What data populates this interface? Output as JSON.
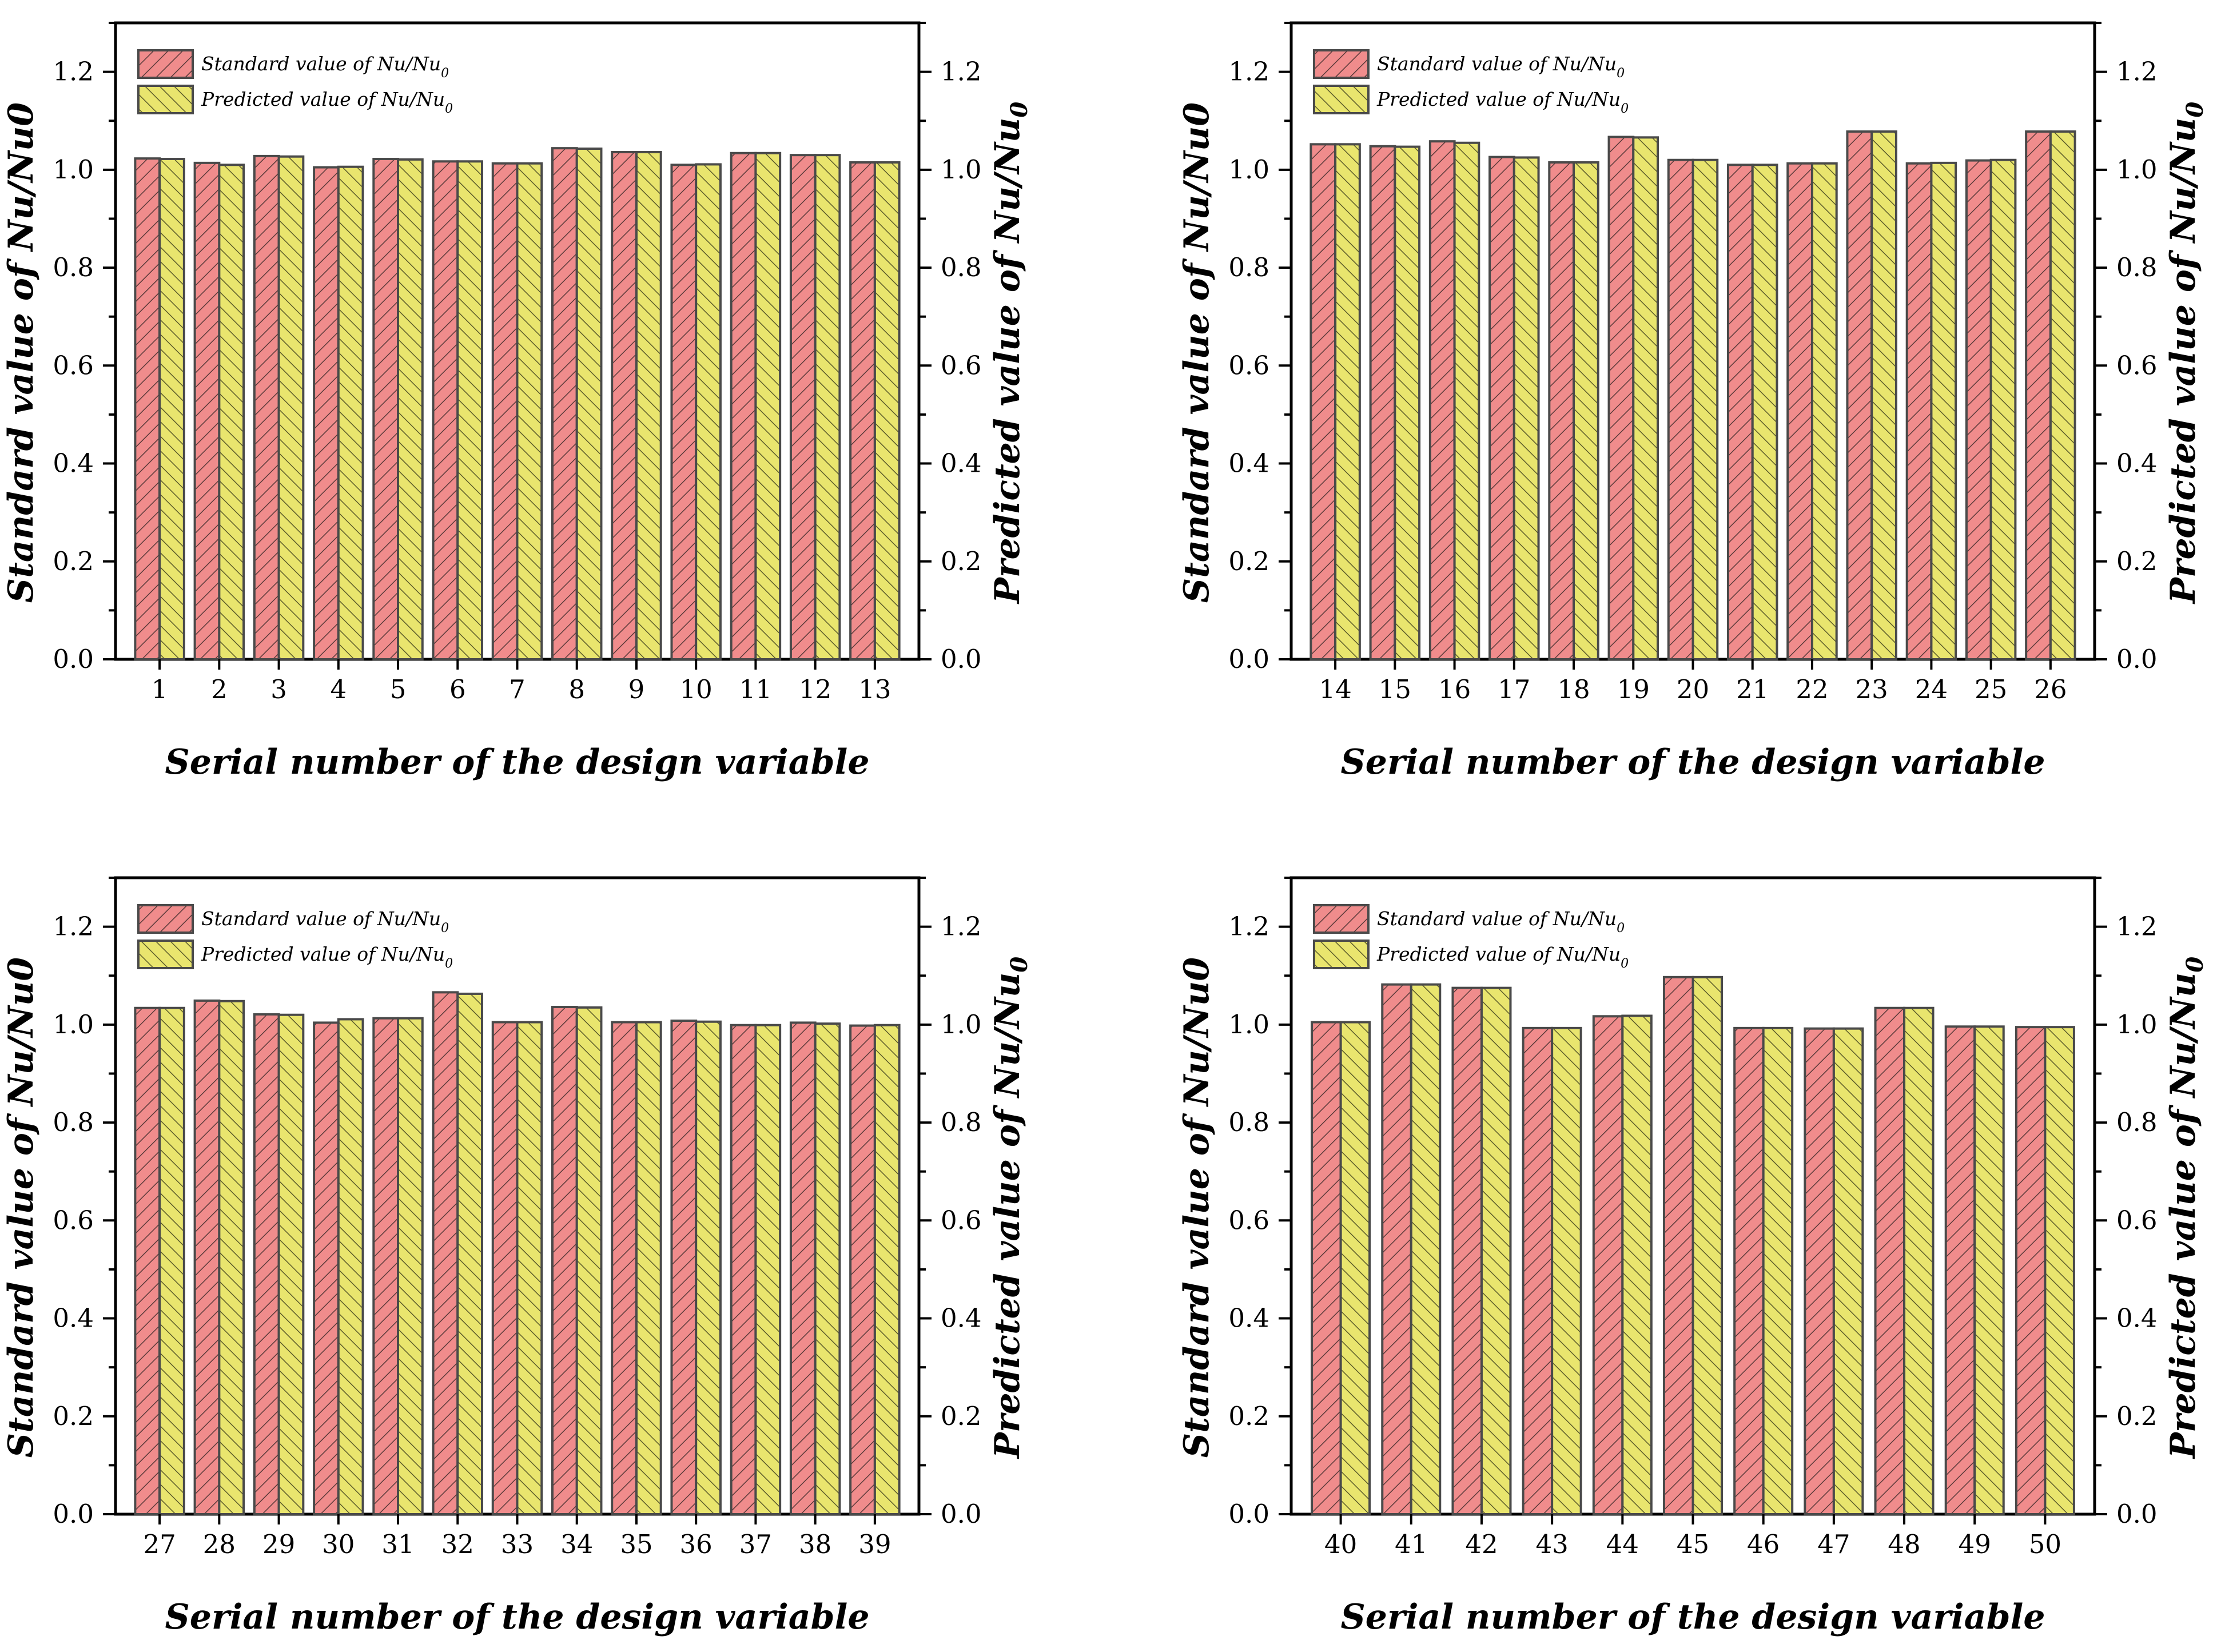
{
  "figure": {
    "x_axis_title": "Serial number of the design variable",
    "left_axis_title": "Standard value of Nu/Nu0",
    "right_axis_title_main": "Predicted value of Nu/Nu",
    "right_axis_title_sub": "0",
    "legend": {
      "standard_main": "Standard value of Nu/Nu",
      "standard_sub": "0",
      "predicted_main": "Predicted value of Nu/Nu",
      "predicted_sub": "0"
    }
  },
  "colors": {
    "standard_fill": "#f08c8c",
    "predicted_fill": "#e9e56e",
    "bar_stroke": "#4a4a4a",
    "axis": "#000000"
  },
  "chart_data": [
    {
      "type": "bar",
      "title": "",
      "xlabel": "Serial number of the design variable",
      "ylabel": "Standard value of Nu/Nu0",
      "y2label": "Predicted value of Nu/Nu0",
      "ylim": [
        0,
        1.3
      ],
      "yticks": [
        "0.0",
        "0.2",
        "0.4",
        "0.6",
        "0.8",
        "1.0",
        "1.2"
      ],
      "categories": [
        "1",
        "2",
        "3",
        "4",
        "5",
        "6",
        "7",
        "8",
        "9",
        "10",
        "11",
        "12",
        "13"
      ],
      "series": [
        {
          "name": "Standard value of Nu/Nu0",
          "values": [
            1.023,
            1.014,
            1.028,
            1.005,
            1.022,
            1.017,
            1.013,
            1.044,
            1.036,
            1.01,
            1.034,
            1.03,
            1.015
          ]
        },
        {
          "name": "Predicted value of Nu/Nu0",
          "values": [
            1.022,
            1.01,
            1.027,
            1.006,
            1.021,
            1.017,
            1.013,
            1.043,
            1.036,
            1.011,
            1.034,
            1.03,
            1.015
          ]
        }
      ],
      "legend_position": "top-left"
    },
    {
      "type": "bar",
      "title": "",
      "xlabel": "Serial number of the design variable",
      "ylabel": "Standard value of Nu/Nu0",
      "y2label": "Predicted value of Nu/Nu0",
      "ylim": [
        0,
        1.3
      ],
      "yticks": [
        "0.0",
        "0.2",
        "0.4",
        "0.6",
        "0.8",
        "1.0",
        "1.2"
      ],
      "categories": [
        "14",
        "15",
        "16",
        "17",
        "18",
        "19",
        "20",
        "21",
        "22",
        "23",
        "24",
        "25",
        "26"
      ],
      "series": [
        {
          "name": "Standard value of Nu/Nu0",
          "values": [
            1.052,
            1.048,
            1.058,
            1.026,
            1.015,
            1.067,
            1.02,
            1.01,
            1.013,
            1.078,
            1.013,
            1.019,
            1.078
          ]
        },
        {
          "name": "Predicted value of Nu/Nu0",
          "values": [
            1.052,
            1.047,
            1.055,
            1.025,
            1.015,
            1.066,
            1.02,
            1.01,
            1.013,
            1.078,
            1.014,
            1.02,
            1.078
          ]
        }
      ],
      "legend_position": "top-left"
    },
    {
      "type": "bar",
      "title": "",
      "xlabel": "Serial number of the design variable",
      "ylabel": "Standard value of Nu/Nu0",
      "y2label": "Predicted value of Nu/Nu0",
      "ylim": [
        0,
        1.3
      ],
      "yticks": [
        "0.0",
        "0.2",
        "0.4",
        "0.6",
        "0.8",
        "1.0",
        "1.2"
      ],
      "categories": [
        "27",
        "28",
        "29",
        "30",
        "31",
        "32",
        "33",
        "34",
        "35",
        "36",
        "37",
        "38",
        "39"
      ],
      "series": [
        {
          "name": "Standard value of Nu/Nu0",
          "values": [
            1.034,
            1.049,
            1.021,
            1.004,
            1.013,
            1.066,
            1.005,
            1.036,
            1.005,
            1.008,
            0.999,
            1.004,
            0.998
          ]
        },
        {
          "name": "Predicted value of Nu/Nu0",
          "values": [
            1.034,
            1.048,
            1.02,
            1.011,
            1.013,
            1.063,
            1.005,
            1.035,
            1.005,
            1.006,
            0.999,
            1.002,
            0.999
          ]
        }
      ],
      "legend_position": "top-left"
    },
    {
      "type": "bar",
      "title": "",
      "xlabel": "Serial number of the design variable",
      "ylabel": "Standard value of Nu/Nu0",
      "y2label": "Predicted value of Nu/Nu0",
      "ylim": [
        0,
        1.3
      ],
      "yticks": [
        "0.0",
        "0.2",
        "0.4",
        "0.6",
        "0.8",
        "1.0",
        "1.2"
      ],
      "categories": [
        "40",
        "41",
        "42",
        "43",
        "44",
        "45",
        "46",
        "47",
        "48",
        "49",
        "50"
      ],
      "series": [
        {
          "name": "Standard value of Nu/Nu0",
          "values": [
            1.005,
            1.082,
            1.075,
            0.993,
            1.017,
            1.097,
            0.993,
            0.992,
            1.034,
            0.996,
            0.995
          ]
        },
        {
          "name": "Predicted value of Nu/Nu0",
          "values": [
            1.005,
            1.082,
            1.075,
            0.993,
            1.018,
            1.097,
            0.993,
            0.992,
            1.034,
            0.996,
            0.995
          ]
        }
      ],
      "legend_position": "top-left"
    }
  ]
}
